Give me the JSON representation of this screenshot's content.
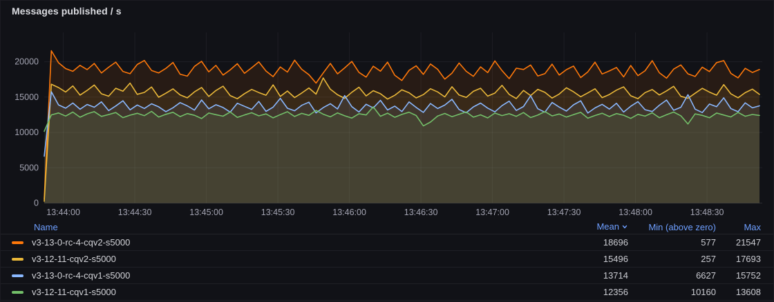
{
  "panel": {
    "title": "Messages published / s"
  },
  "chart_data": {
    "type": "line",
    "title": "Messages published / s",
    "xlabel": "",
    "ylabel": "",
    "grid": true,
    "legend_position": "bottom-table",
    "ylim": [
      0,
      21800
    ],
    "y_ticks": [
      0,
      5000,
      10000,
      15000,
      20000
    ],
    "x_ticks": [
      "13:44:00",
      "13:44:30",
      "13:45:00",
      "13:45:30",
      "13:46:00",
      "13:46:30",
      "13:47:00",
      "13:47:30",
      "13:48:00",
      "13:48:30"
    ],
    "x_tick_interval_s": 30,
    "x_start_before_first_tick_s": 8,
    "sample_step_s": 3,
    "fill_opacity": 0.095,
    "series": [
      {
        "name": "v3-13-0-rc-4-cqv2-s5000",
        "color": "#FF780A",
        "values": [
          577,
          21547,
          19850,
          19020,
          18640,
          19480,
          18890,
          19760,
          18410,
          19220,
          19940,
          18620,
          18300,
          19610,
          20180,
          18760,
          18420,
          19050,
          19890,
          18230,
          17960,
          19340,
          20060,
          18570,
          19480,
          18120,
          18840,
          19720,
          18360,
          19150,
          19980,
          18680,
          17890,
          19260,
          18540,
          20210,
          18930,
          18170,
          16980,
          18410,
          19760,
          18280,
          19120,
          20040,
          18500,
          17820,
          19370,
          18660,
          19940,
          18090,
          17350,
          18770,
          19420,
          18210,
          19680,
          18930,
          17540,
          18380,
          19810,
          18640,
          17930,
          19270,
          18460,
          20120,
          18750,
          17610,
          19080,
          18900,
          19530,
          17980,
          18310,
          19660,
          18120,
          18880,
          19390,
          17760,
          18570,
          19940,
          18260,
          18690,
          19180,
          17850,
          19460,
          18030,
          18720,
          20150,
          18440,
          17670,
          18960,
          19540,
          18280,
          17910,
          19230,
          18600,
          19870,
          20160,
          18350,
          17720,
          19060,
          18480,
          18900
        ]
      },
      {
        "name": "v3-12-11-cqv2-s5000",
        "color": "#EAB839",
        "values": [
          257,
          16820,
          16340,
          15720,
          16580,
          15280,
          15940,
          16700,
          15460,
          15120,
          16240,
          15830,
          16980,
          15390,
          15660,
          16420,
          14980,
          15540,
          16160,
          15310,
          14890,
          15740,
          16350,
          15080,
          15920,
          16540,
          15210,
          14760,
          15480,
          16080,
          15640,
          15260,
          16720,
          15090,
          15850,
          14930,
          15570,
          16280,
          15410,
          17693,
          16110,
          15330,
          14820,
          15680,
          16390,
          15160,
          15900,
          15470,
          14710,
          15250,
          16030,
          15610,
          14880,
          15350,
          16180,
          15730,
          15020,
          16460,
          15290,
          14950,
          15810,
          16240,
          15130,
          15560,
          16650,
          15380,
          14790,
          15940,
          15210,
          16090,
          15670,
          14860,
          15420,
          16310,
          15750,
          15040,
          15590,
          16170,
          14920,
          15360,
          15980,
          16440,
          15180,
          14770,
          15630,
          16060,
          15300,
          15870,
          16520,
          15100,
          14830,
          15540,
          16230,
          15700,
          15270,
          16760,
          15450,
          14900,
          15620,
          16120,
          15380
        ]
      },
      {
        "name": "v3-13-0-rc-4-cqv1-s5000",
        "color": "#8AB8FF",
        "values": [
          6627,
          15752,
          13890,
          13420,
          14160,
          13280,
          13950,
          13560,
          14320,
          13080,
          13740,
          14480,
          13190,
          13870,
          13390,
          14050,
          13620,
          12940,
          13480,
          14210,
          13760,
          13150,
          14590,
          13340,
          13910,
          13520,
          12870,
          14130,
          13690,
          13260,
          14380,
          12980,
          13570,
          14820,
          13410,
          13060,
          13830,
          14270,
          12760,
          13500,
          14060,
          13320,
          15210,
          13640,
          12890,
          13980,
          13450,
          14540,
          13170,
          13720,
          12950,
          14310,
          13530,
          12830,
          14090,
          13380,
          13860,
          14680,
          13240,
          12780,
          13610,
          14150,
          13430,
          12910,
          13790,
          14420,
          13100,
          13660,
          15180,
          13350,
          12860,
          14230,
          13580,
          13020,
          13900,
          14470,
          12740,
          13460,
          13970,
          13300,
          14120,
          12880,
          13700,
          14350,
          13210,
          12960,
          13840,
          14580,
          13130,
          13550,
          15340,
          13290,
          12810,
          14010,
          13640,
          14890,
          13370,
          12930,
          14190,
          13470,
          13760
        ]
      },
      {
        "name": "v3-12-11-cqv1-s5000",
        "color": "#73BF69",
        "values": [
          10160,
          12480,
          12750,
          12310,
          12880,
          12150,
          12620,
          12940,
          12260,
          12530,
          12810,
          12090,
          12440,
          12700,
          12370,
          12980,
          12180,
          12560,
          12850,
          12230,
          12660,
          12420,
          11960,
          12740,
          12510,
          12290,
          12890,
          12120,
          12470,
          12780,
          12340,
          12610,
          12060,
          12520,
          12930,
          12250,
          12690,
          12410,
          13110,
          12580,
          12200,
          12760,
          12350,
          12030,
          12640,
          12470,
          13608,
          12280,
          12720,
          12140,
          12550,
          12860,
          12390,
          10920,
          11460,
          12310,
          12680,
          12220,
          12570,
          12900,
          12160,
          12490,
          12050,
          12730,
          12380,
          12640,
          12270,
          12810,
          12100,
          12450,
          12950,
          12330,
          12600,
          12170,
          12520,
          12840,
          12010,
          12390,
          12710,
          12240,
          12660,
          12430,
          11980,
          12560,
          12300,
          12770,
          12080,
          12500,
          12880,
          12350,
          11190,
          12620,
          12410,
          12070,
          12740,
          12460,
          12190,
          12830,
          12280,
          12540,
          12400
        ]
      }
    ]
  },
  "legend": {
    "columns": [
      "Name",
      "Mean",
      "Min (above zero)",
      "Max"
    ],
    "sorted_by": "Mean",
    "sort_direction": "desc",
    "rows": [
      {
        "name": "v3-13-0-rc-4-cqv2-s5000",
        "color": "#FF780A",
        "mean": "18696",
        "min": "577",
        "max": "21547"
      },
      {
        "name": "v3-12-11-cqv2-s5000",
        "color": "#EAB839",
        "mean": "15496",
        "min": "257",
        "max": "17693"
      },
      {
        "name": "v3-13-0-rc-4-cqv1-s5000",
        "color": "#8AB8FF",
        "mean": "13714",
        "min": "6627",
        "max": "15752"
      },
      {
        "name": "v3-12-11-cqv1-s5000",
        "color": "#73BF69",
        "mean": "12356",
        "min": "10160",
        "max": "13608"
      }
    ]
  },
  "colors": {
    "background": "#111217",
    "grid": "rgba(204,204,220,0.07)",
    "axis_text": "rgba(204,204,220,0.78)",
    "header_link": "#6e9fff"
  }
}
